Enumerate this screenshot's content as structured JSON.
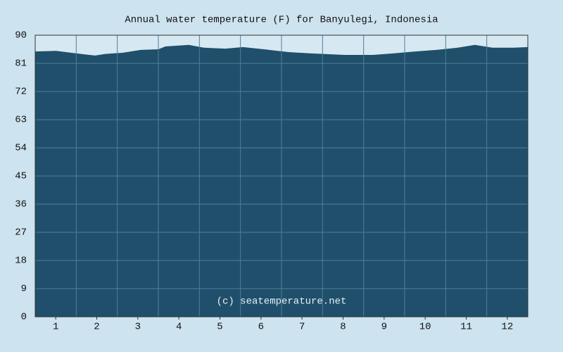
{
  "chart_data": {
    "type": "area",
    "title": "Annual water temperature (F) for Banyulegi, Indonesia",
    "annotation": "(c) seatemperature.net",
    "x": [
      0.5,
      1.01,
      1.49,
      1.96,
      2.21,
      2.64,
      3.07,
      3.5,
      3.67,
      4.24,
      4.61,
      5.13,
      5.56,
      6.07,
      6.67,
      7.19,
      8.04,
      8.73,
      9.24,
      9.76,
      10.27,
      10.79,
      11.21,
      11.64,
      12.16,
      12.5
    ],
    "values": [
      84.8,
      85.0,
      84.2,
      83.5,
      84.0,
      84.4,
      85.3,
      85.5,
      86.4,
      86.9,
      86.0,
      85.7,
      86.2,
      85.5,
      84.6,
      84.2,
      83.7,
      83.7,
      84.2,
      84.8,
      85.3,
      86.0,
      86.9,
      86.0,
      86.0,
      86.2
    ],
    "color": "#1f4f6b",
    "xlim": [
      0.5,
      12.5
    ],
    "xticks": [
      1,
      2,
      3,
      4,
      5,
      6,
      7,
      8,
      9,
      10,
      11,
      12
    ],
    "ylim": [
      0,
      90
    ],
    "yticks": [
      0,
      9,
      18,
      27,
      36,
      45,
      54,
      63,
      72,
      81,
      90
    ],
    "grid": true
  }
}
